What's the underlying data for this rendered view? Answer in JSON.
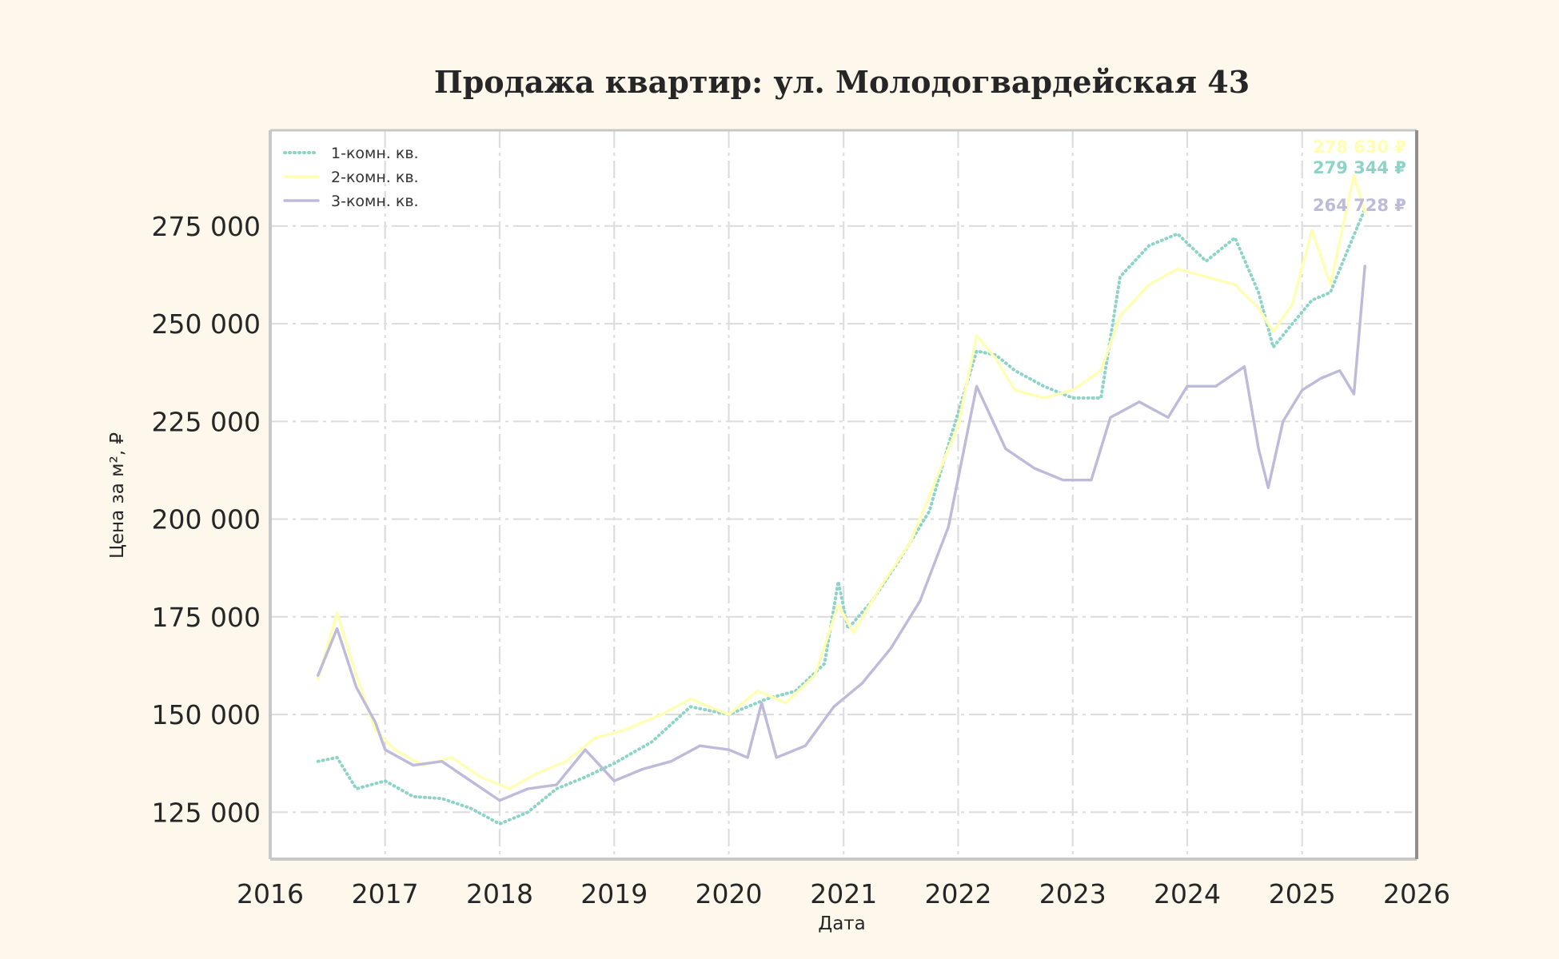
{
  "chart_data": {
    "type": "line",
    "title": "Продажа квартир: ул. Молодогвардейская 43",
    "xlabel": "Дата",
    "ylabel": "Цена за м², ₽",
    "xlim": [
      "2016-01-01",
      "2026-01-01"
    ],
    "ylim": [
      113000,
      299500
    ],
    "x_ticks": [
      "2016",
      "2017",
      "2018",
      "2019",
      "2020",
      "2021",
      "2022",
      "2023",
      "2024",
      "2025",
      "2026"
    ],
    "y_ticks": [
      125000,
      150000,
      175000,
      200000,
      225000,
      250000,
      275000
    ],
    "y_tick_labels": [
      "125 000",
      "150 000",
      "175 000",
      "200 000",
      "225 000",
      "250 000",
      "275 000"
    ],
    "grid": true,
    "legend_position": "top-left",
    "colors": {
      "background": "#fef7ec",
      "plot_area": "#ffffff",
      "series_1": "#8dd3c7",
      "series_2": "#ffffb3",
      "series_3": "#bebada"
    },
    "series": [
      {
        "name": "1-комн. кв.",
        "style": "dotted",
        "color": "#8dd3c7",
        "end_label": "279 344 ₽",
        "points": [
          [
            "2016-06-01",
            138000
          ],
          [
            "2016-08-01",
            139000
          ],
          [
            "2016-10-01",
            131000
          ],
          [
            "2017-01-01",
            133000
          ],
          [
            "2017-04-01",
            129000
          ],
          [
            "2017-07-01",
            128500
          ],
          [
            "2017-10-01",
            126000
          ],
          [
            "2018-01-01",
            122000
          ],
          [
            "2018-04-01",
            125000
          ],
          [
            "2018-07-01",
            131000
          ],
          [
            "2018-10-01",
            134000
          ],
          [
            "2019-01-01",
            137500
          ],
          [
            "2019-05-01",
            143000
          ],
          [
            "2019-09-01",
            152000
          ],
          [
            "2020-01-01",
            150000
          ],
          [
            "2020-05-01",
            154000
          ],
          [
            "2020-08-01",
            156000
          ],
          [
            "2020-11-01",
            163000
          ],
          [
            "2020-12-15",
            184000
          ],
          [
            "2021-01-15",
            172000
          ],
          [
            "2021-04-01",
            179000
          ],
          [
            "2021-07-01",
            190000
          ],
          [
            "2021-10-01",
            202000
          ],
          [
            "2021-12-01",
            219000
          ],
          [
            "2022-03-01",
            243000
          ],
          [
            "2022-05-01",
            242000
          ],
          [
            "2022-07-01",
            238000
          ],
          [
            "2022-10-01",
            234000
          ],
          [
            "2023-01-01",
            231000
          ],
          [
            "2023-04-01",
            231000
          ],
          [
            "2023-06-01",
            262000
          ],
          [
            "2023-09-01",
            270000
          ],
          [
            "2023-12-01",
            273000
          ],
          [
            "2024-03-01",
            266000
          ],
          [
            "2024-06-01",
            272000
          ],
          [
            "2024-08-15",
            258000
          ],
          [
            "2024-10-01",
            244000
          ],
          [
            "2024-12-01",
            250000
          ],
          [
            "2025-02-01",
            256000
          ],
          [
            "2025-04-01",
            258000
          ],
          [
            "2025-06-01",
            270000
          ],
          [
            "2025-07-20",
            279344
          ]
        ]
      },
      {
        "name": "2-комн. кв.",
        "style": "solid",
        "color": "#ffffb3",
        "end_label": "278 630 ₽",
        "points": [
          [
            "2016-06-01",
            159000
          ],
          [
            "2016-08-01",
            176000
          ],
          [
            "2016-10-01",
            160000
          ],
          [
            "2016-12-01",
            146000
          ],
          [
            "2017-02-01",
            141000
          ],
          [
            "2017-05-01",
            137000
          ],
          [
            "2017-08-01",
            139000
          ],
          [
            "2017-11-01",
            134000
          ],
          [
            "2018-02-01",
            131000
          ],
          [
            "2018-05-01",
            135000
          ],
          [
            "2018-08-01",
            138000
          ],
          [
            "2018-11-01",
            144000
          ],
          [
            "2019-02-01",
            146000
          ],
          [
            "2019-06-01",
            150000
          ],
          [
            "2019-09-01",
            154000
          ],
          [
            "2020-01-01",
            150000
          ],
          [
            "2020-04-01",
            156000
          ],
          [
            "2020-07-01",
            153000
          ],
          [
            "2020-10-01",
            160000
          ],
          [
            "2020-12-15",
            178000
          ],
          [
            "2021-02-01",
            171000
          ],
          [
            "2021-05-01",
            183000
          ],
          [
            "2021-08-01",
            194000
          ],
          [
            "2021-11-01",
            212000
          ],
          [
            "2022-01-01",
            224000
          ],
          [
            "2022-03-01",
            247000
          ],
          [
            "2022-05-01",
            241000
          ],
          [
            "2022-07-01",
            233000
          ],
          [
            "2022-10-01",
            231000
          ],
          [
            "2023-01-01",
            233000
          ],
          [
            "2023-04-01",
            238000
          ],
          [
            "2023-06-01",
            252000
          ],
          [
            "2023-09-01",
            260000
          ],
          [
            "2023-12-01",
            264000
          ],
          [
            "2024-03-01",
            262000
          ],
          [
            "2024-06-01",
            260000
          ],
          [
            "2024-08-15",
            254000
          ],
          [
            "2024-10-01",
            248000
          ],
          [
            "2024-12-01",
            255000
          ],
          [
            "2025-02-01",
            274000
          ],
          [
            "2025-04-01",
            260000
          ],
          [
            "2025-06-15",
            288000
          ],
          [
            "2025-07-20",
            278630
          ]
        ]
      },
      {
        "name": "3-комн. кв.",
        "style": "solid",
        "color": "#bebada",
        "end_label": "264 728 ₽",
        "points": [
          [
            "2016-06-01",
            160000
          ],
          [
            "2016-08-01",
            172000
          ],
          [
            "2016-10-01",
            157000
          ],
          [
            "2016-12-01",
            148000
          ],
          [
            "2017-01-01",
            141000
          ],
          [
            "2017-04-01",
            137000
          ],
          [
            "2017-07-01",
            138000
          ],
          [
            "2017-10-01",
            133000
          ],
          [
            "2018-01-01",
            128000
          ],
          [
            "2018-04-01",
            131000
          ],
          [
            "2018-07-01",
            132000
          ],
          [
            "2018-10-01",
            141000
          ],
          [
            "2019-01-01",
            133000
          ],
          [
            "2019-04-01",
            136000
          ],
          [
            "2019-07-01",
            138000
          ],
          [
            "2019-10-01",
            142000
          ],
          [
            "2020-01-01",
            141000
          ],
          [
            "2020-03-01",
            139000
          ],
          [
            "2020-04-15",
            153000
          ],
          [
            "2020-06-01",
            139000
          ],
          [
            "2020-09-01",
            142000
          ],
          [
            "2020-12-01",
            152000
          ],
          [
            "2021-03-01",
            158000
          ],
          [
            "2021-06-01",
            167000
          ],
          [
            "2021-09-01",
            179000
          ],
          [
            "2021-12-01",
            198000
          ],
          [
            "2022-03-01",
            234000
          ],
          [
            "2022-06-01",
            218000
          ],
          [
            "2022-09-01",
            213000
          ],
          [
            "2022-12-01",
            210000
          ],
          [
            "2023-03-01",
            210000
          ],
          [
            "2023-05-01",
            226000
          ],
          [
            "2023-08-01",
            230000
          ],
          [
            "2023-11-01",
            226000
          ],
          [
            "2024-01-01",
            234000
          ],
          [
            "2024-04-01",
            234000
          ],
          [
            "2024-07-01",
            239000
          ],
          [
            "2024-08-15",
            218000
          ],
          [
            "2024-09-15",
            208000
          ],
          [
            "2024-11-01",
            225000
          ],
          [
            "2025-01-01",
            233000
          ],
          [
            "2025-03-01",
            236000
          ],
          [
            "2025-05-01",
            238000
          ],
          [
            "2025-06-15",
            232000
          ],
          [
            "2025-07-20",
            264728
          ]
        ]
      }
    ]
  }
}
